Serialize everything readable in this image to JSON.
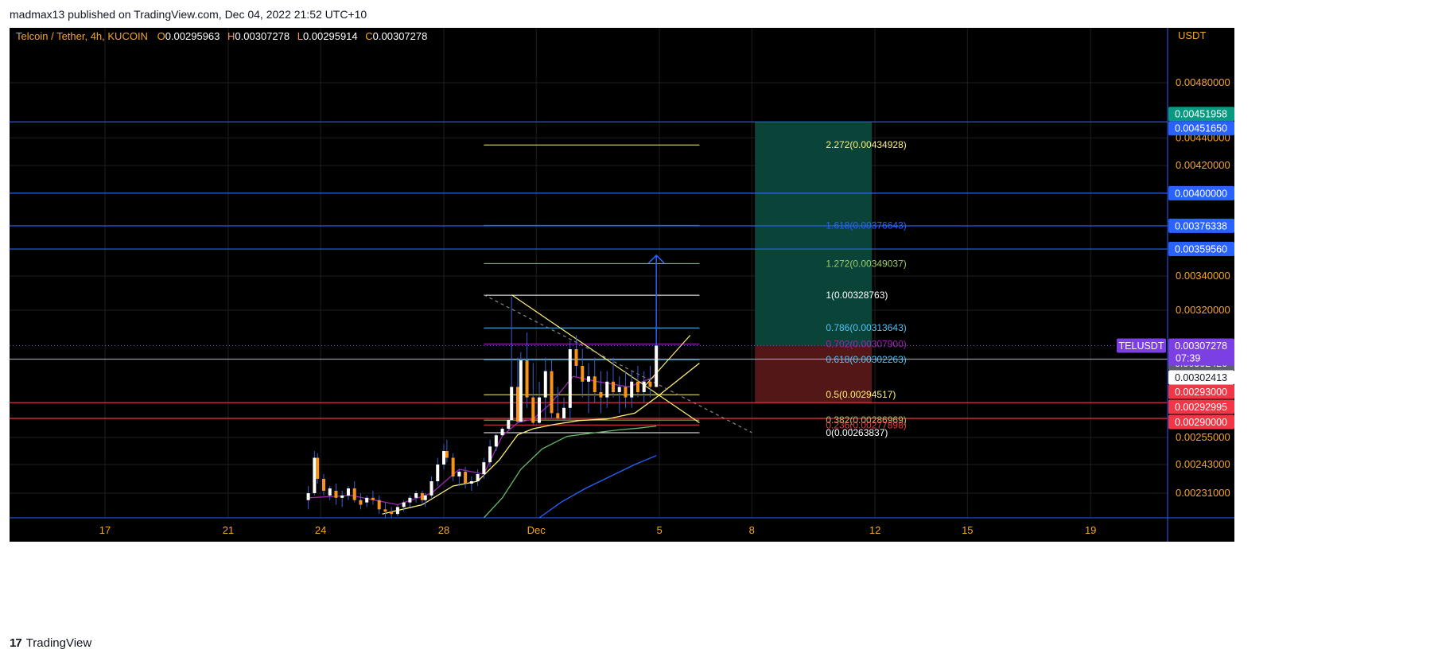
{
  "header": {
    "published": "madmax13 published on TradingView.com, Dec 04, 2022 21:52 UTC+10"
  },
  "footer": {
    "brand": "TradingView",
    "brand_icon": "tradingview-logo-icon"
  },
  "colors": {
    "background": "#000000",
    "grid": "#1f1f1f",
    "axis_text": "#f5a623",
    "bull_candle": "#ffffff",
    "bear_candle": "#f7931a",
    "horizontal_line": "#2962ff",
    "fib_white": "#ffffff",
    "fib_blue": "#2962ff",
    "fib_green": "#9ccc65",
    "fib_red": "#f23645",
    "fib_lightblue": "#4fc3f7",
    "fib_purple": "#9c27b0",
    "fib_yellow": "#fff176",
    "target_zone": "#0b4a3e",
    "stop_zone": "#5c1a1a",
    "ma_fast": "#9c27b0",
    "ma_yellow": "#fff176",
    "ma_green": "#66bb6a",
    "ma_blue": "#2962ff",
    "label_purple": "#7b3fe4",
    "label_teal": "#089981",
    "label_blue": "#2962ff",
    "label_red": "#f23645",
    "label_grey": "#5d606b"
  },
  "chart_data": {
    "type": "candlestick",
    "symbol_line": {
      "symbol": "Telcoin / Tether, 4h, KUCOIN",
      "open_label": "O",
      "open": "0.00295963",
      "high_label": "H",
      "high": "0.00307278",
      "low_label": "L",
      "low": "0.00295914",
      "close_label": "C",
      "close": "0.00307278"
    },
    "currency": "USDT",
    "x_ticks": [
      {
        "label": "17",
        "t": 17
      },
      {
        "label": "21",
        "t": 21
      },
      {
        "label": "24",
        "t": 24
      },
      {
        "label": "28",
        "t": 28
      },
      {
        "label": "Dec",
        "t": 31
      },
      {
        "label": "5",
        "t": 35
      },
      {
        "label": "8",
        "t": 38
      },
      {
        "label": "12",
        "t": 42
      },
      {
        "label": "15",
        "t": 45
      },
      {
        "label": "19",
        "t": 49
      }
    ],
    "x_range": [
      13.9,
      51.5
    ],
    "y_ticks": [
      {
        "label": "0.00480000",
        "v": 0.0048
      },
      {
        "label": "0.00440000",
        "v": 0.0044
      },
      {
        "label": "0.00420000",
        "v": 0.0042
      },
      {
        "label": "0.00340000",
        "v": 0.0034
      },
      {
        "label": "0.00320000",
        "v": 0.0032
      },
      {
        "label": "0.00255000",
        "v": 0.00255
      },
      {
        "label": "0.00243000",
        "v": 0.00243
      },
      {
        "label": "0.00231000",
        "v": 0.00231
      }
    ],
    "price_labels": [
      {
        "text": "0.00451958",
        "v": 0.00451958,
        "color": "#089981"
      },
      {
        "text": "0.00451650",
        "v": 0.0045165,
        "color": "#2962ff"
      },
      {
        "text": "0.00400000",
        "v": 0.004,
        "color": "#2962ff"
      },
      {
        "text": "0.00376338",
        "v": 0.00376338,
        "color": "#2962ff"
      },
      {
        "text": "0.00359560",
        "v": 0.0035956,
        "color": "#2962ff"
      },
      {
        "text": "0.00302426",
        "v": 0.00302426,
        "color": "#5d606b"
      },
      {
        "text": "0.00302413",
        "v": 0.00302413,
        "color": "#ffffff"
      },
      {
        "text": "0.00293000",
        "v": 0.00293,
        "color": "#f23645"
      },
      {
        "text": "0.00292995",
        "v": 0.00292995,
        "color": "#f23645"
      },
      {
        "text": "0.00290000",
        "v": 0.0029,
        "color": "#f23645"
      }
    ],
    "last_price": {
      "symbol": "TELUSDT",
      "price": "0.00307278",
      "countdown": "07:39",
      "v": 0.00307278
    },
    "horizontal_lines": [
      0.0045165,
      0.004,
      0.00376338,
      0.0035956,
      0.00302426,
      0.00293,
      0.0029
    ],
    "fib_levels": [
      {
        "label": "2.272(0.00434928)",
        "v": 0.00434928,
        "color": "#fff176"
      },
      {
        "label": "1.618(0.00376643)",
        "v": 0.00376643,
        "color": "#2962ff"
      },
      {
        "label": "1.272(0.00349037)",
        "v": 0.00349037,
        "color": "#9ccc65"
      },
      {
        "label": "1(0.00328763)",
        "v": 0.00328763,
        "color": "#ffffff"
      },
      {
        "label": "0.786(0.00313643)",
        "v": 0.00313643,
        "color": "#4fc3f7"
      },
      {
        "label": "0.702(0.00307900)",
        "v": 0.003079,
        "color": "#9c27b0"
      },
      {
        "label": "0.618(0.00302263)",
        "v": 0.00302263,
        "color": "#4fc3f7"
      },
      {
        "label": "0.5(0.00294517)",
        "v": 0.00294517,
        "color": "#fff176"
      },
      {
        "label": "0.382(0.00286969)",
        "v": 0.00286969,
        "color": "#9ccc65"
      },
      {
        "label": "0.236(0.00277898)",
        "v": 0.00277898,
        "color": "#f23645"
      },
      {
        "label": "0(0.00263837)",
        "v": 0.00263837,
        "color": "#ffffff"
      }
    ],
    "fib_x_range": [
      29.3,
      36.3
    ],
    "position_tool": {
      "x_start": 38.1,
      "x_end": 41.9,
      "entry": 0.00307278,
      "target": 0.0045165,
      "stop": 0.00293
    },
    "arrow": {
      "t": 34.9,
      "from": 0.00307278,
      "to": 0.00355
    },
    "candles": [
      [
        23.6,
        0.00228,
        0.00234,
        0.00224,
        0.00231
      ],
      [
        23.8,
        0.00231,
        0.00249,
        0.0023,
        0.00246
      ],
      [
        23.9,
        0.00246,
        0.00248,
        0.00235,
        0.00237
      ],
      [
        24.1,
        0.00237,
        0.00239,
        0.0023,
        0.00232
      ],
      [
        24.3,
        0.0023,
        0.00234,
        0.00228,
        0.00233
      ],
      [
        24.5,
        0.00232,
        0.00235,
        0.00226,
        0.00229
      ],
      [
        24.7,
        0.00229,
        0.00232,
        0.00225,
        0.0023
      ],
      [
        24.9,
        0.0023,
        0.00234,
        0.00228,
        0.00233
      ],
      [
        25.1,
        0.00233,
        0.00236,
        0.00227,
        0.00228
      ],
      [
        25.3,
        0.00228,
        0.00231,
        0.00224,
        0.00226
      ],
      [
        25.5,
        0.00227,
        0.0023,
        0.00225,
        0.00229
      ],
      [
        25.7,
        0.00229,
        0.00232,
        0.00226,
        0.00228
      ],
      [
        25.9,
        0.00228,
        0.0023,
        0.00222,
        0.00224
      ],
      [
        26.1,
        0.00224,
        0.00227,
        0.0022,
        0.00223
      ],
      [
        26.3,
        0.00223,
        0.00225,
        0.0022,
        0.00222
      ],
      [
        26.5,
        0.00222,
        0.00226,
        0.00221,
        0.00225
      ],
      [
        26.7,
        0.00225,
        0.00228,
        0.00223,
        0.00227
      ],
      [
        26.9,
        0.00227,
        0.0023,
        0.00225,
        0.00229
      ],
      [
        27.1,
        0.00229,
        0.00232,
        0.00227,
        0.00231
      ],
      [
        27.3,
        0.00231,
        0.00232,
        0.00226,
        0.00228
      ],
      [
        27.4,
        0.00228,
        0.00231,
        0.00225,
        0.0023
      ],
      [
        27.6,
        0.0023,
        0.00238,
        0.00229,
        0.00236
      ],
      [
        27.8,
        0.00236,
        0.00246,
        0.00234,
        0.00243
      ],
      [
        28.0,
        0.00243,
        0.00252,
        0.00241,
        0.00249
      ],
      [
        28.1,
        0.00249,
        0.00254,
        0.00244,
        0.00246
      ],
      [
        28.3,
        0.00246,
        0.00248,
        0.00236,
        0.00238
      ],
      [
        28.5,
        0.00238,
        0.00241,
        0.00234,
        0.0024
      ],
      [
        28.7,
        0.0024,
        0.00242,
        0.00233,
        0.00235
      ],
      [
        28.9,
        0.00235,
        0.00238,
        0.00232,
        0.00236
      ],
      [
        29.1,
        0.00236,
        0.00241,
        0.00234,
        0.00239
      ],
      [
        29.3,
        0.00239,
        0.00246,
        0.00237,
        0.00244
      ],
      [
        29.5,
        0.00244,
        0.00254,
        0.00242,
        0.00251
      ],
      [
        29.7,
        0.00251,
        0.00262,
        0.00249,
        0.00259
      ],
      [
        29.9,
        0.00259,
        0.00274,
        0.00257,
        0.00271
      ],
      [
        30.1,
        0.00271,
        0.0029,
        0.00269,
        0.00287
      ],
      [
        30.2,
        0.00287,
        0.00328,
        0.00285,
        0.00296
      ],
      [
        30.4,
        0.00296,
        0.00303,
        0.00281,
        0.00284
      ],
      [
        30.5,
        0.00284,
        0.00305,
        0.00283,
        0.00302
      ],
      [
        30.7,
        0.00302,
        0.00312,
        0.00292,
        0.00294
      ],
      [
        30.9,
        0.00294,
        0.00301,
        0.00279,
        0.00282
      ],
      [
        31.1,
        0.00282,
        0.00297,
        0.0028,
        0.00294
      ],
      [
        31.3,
        0.00294,
        0.00303,
        0.00288,
        0.00299
      ],
      [
        31.5,
        0.00299,
        0.00302,
        0.00289,
        0.00291
      ],
      [
        31.7,
        0.00291,
        0.00296,
        0.00285,
        0.0029
      ],
      [
        31.9,
        0.0029,
        0.00294,
        0.00284,
        0.00292
      ],
      [
        32.1,
        0.00292,
        0.00309,
        0.00287,
        0.00306
      ],
      [
        32.3,
        0.00306,
        0.00311,
        0.00298,
        0.003
      ],
      [
        32.5,
        0.003,
        0.00306,
        0.00294,
        0.00297
      ],
      [
        32.7,
        0.00297,
        0.00301,
        0.00291,
        0.00298
      ],
      [
        32.9,
        0.00298,
        0.00303,
        0.00293,
        0.00295
      ],
      [
        33.1,
        0.00295,
        0.00299,
        0.00291,
        0.00294
      ],
      [
        33.3,
        0.00294,
        0.00299,
        0.00292,
        0.00297
      ],
      [
        33.5,
        0.00297,
        0.00303,
        0.00294,
        0.00295
      ],
      [
        33.7,
        0.00295,
        0.00298,
        0.00291,
        0.00296
      ],
      [
        33.9,
        0.00296,
        0.00299,
        0.00292,
        0.00294
      ],
      [
        34.1,
        0.00294,
        0.00299,
        0.00292,
        0.00297
      ],
      [
        34.3,
        0.00297,
        0.003,
        0.00294,
        0.00295
      ],
      [
        34.5,
        0.00295,
        0.00299,
        0.00293,
        0.00297
      ],
      [
        34.7,
        0.00297,
        0.003,
        0.00294,
        0.00296
      ],
      [
        34.9,
        0.00296,
        0.00307278,
        0.00295914,
        0.00307278
      ]
    ],
    "moving_averages": [
      {
        "color": "#9c27b0",
        "points": [
          [
            23.6,
            0.00229
          ],
          [
            25,
            0.0023
          ],
          [
            26.5,
            0.00226
          ],
          [
            27.6,
            0.00231
          ],
          [
            28.5,
            0.00241
          ],
          [
            29.3,
            0.00239
          ],
          [
            29.9,
            0.00258
          ],
          [
            30.4,
            0.00282
          ],
          [
            30.9,
            0.00289
          ],
          [
            31.5,
            0.00293
          ],
          [
            32.2,
            0.00298
          ],
          [
            33,
            0.00297
          ],
          [
            34,
            0.00296
          ],
          [
            34.9,
            0.00298
          ]
        ]
      },
      {
        "color": "#fff176",
        "points": [
          [
            26,
            0.00222
          ],
          [
            27.3,
            0.00226
          ],
          [
            28.3,
            0.00234
          ],
          [
            29.1,
            0.00236
          ],
          [
            29.8,
            0.00245
          ],
          [
            30.4,
            0.0026
          ],
          [
            30.9,
            0.00271
          ],
          [
            31.6,
            0.00279
          ],
          [
            32.4,
            0.00286
          ],
          [
            33.3,
            0.00289
          ],
          [
            34.2,
            0.00291
          ],
          [
            34.9,
            0.00294
          ],
          [
            36.3,
            0.00301
          ]
        ]
      },
      {
        "color": "#66bb6a",
        "points": [
          [
            29.3,
            0.0022
          ],
          [
            29.9,
            0.00229
          ],
          [
            30.5,
            0.00241
          ],
          [
            31.2,
            0.0025
          ],
          [
            32,
            0.00257
          ],
          [
            32.8,
            0.00263
          ],
          [
            33.7,
            0.00269
          ],
          [
            34.3,
            0.00272
          ],
          [
            34.9,
            0.00276
          ]
        ]
      },
      {
        "color": "#2962ff",
        "points": [
          [
            31.1,
            0.0022
          ],
          [
            31.8,
            0.00227
          ],
          [
            32.6,
            0.00233
          ],
          [
            33.4,
            0.00238
          ],
          [
            34.2,
            0.00243
          ],
          [
            34.9,
            0.00247
          ]
        ]
      }
    ],
    "trendlines": [
      {
        "color": "#fff176",
        "from": [
          30.2,
          0.00329
        ],
        "to": [
          36.3,
          0.00282
        ],
        "dashed": false
      },
      {
        "color": "#888888",
        "from": [
          29.3,
          0.00329
        ],
        "to": [
          38.0,
          0.00264
        ],
        "dashed": true
      },
      {
        "color": "#fff176",
        "from": [
          34.5,
          0.00296
        ],
        "to": [
          36.0,
          0.00311
        ],
        "dashed": false
      }
    ]
  }
}
